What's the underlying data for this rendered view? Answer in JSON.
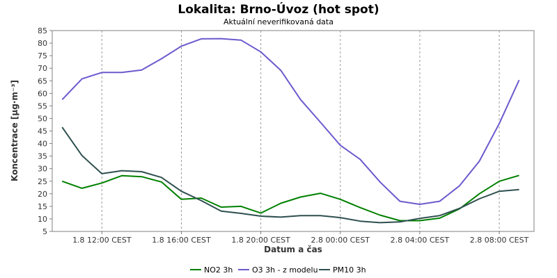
{
  "chart_data": {
    "type": "line",
    "title": "Lokalita: Brno-Úvoz (hot spot)",
    "subtitle": "Aktuální neverifikovaná data",
    "xlabel": "Datum a čas",
    "ylabel": "Koncentrace [µg·m⁻³]",
    "ylim": [
      5,
      85
    ],
    "yticks": [
      5,
      10,
      15,
      20,
      25,
      30,
      35,
      40,
      45,
      50,
      55,
      60,
      65,
      70,
      75,
      80,
      85
    ],
    "xlim": [
      9.5,
      33.75
    ],
    "xticks": [
      {
        "x": 12,
        "label": "1.8 12:00 CEST"
      },
      {
        "x": 16,
        "label": "1.8 16:00 CEST"
      },
      {
        "x": 20,
        "label": "1.8 20:00 CEST"
      },
      {
        "x": 24,
        "label": "2.8 00:00 CEST"
      },
      {
        "x": 28,
        "label": "2.8 04:00 CEST"
      },
      {
        "x": 32,
        "label": "2.8 08:00 CEST"
      }
    ],
    "grid": true,
    "legend_position": "bottom",
    "x": [
      10,
      11,
      12,
      13,
      14,
      15,
      16,
      17,
      18,
      19,
      20,
      21,
      22,
      23,
      24,
      25,
      26,
      27,
      28,
      29,
      30,
      31,
      32,
      33
    ],
    "series": [
      {
        "name": "NO2 3h",
        "color": "#008000",
        "values": [
          25,
          22.2,
          24.3,
          27.2,
          26.8,
          24.7,
          17.8,
          18.3,
          14.7,
          15,
          12.3,
          16.2,
          18.7,
          20.2,
          17.8,
          14.5,
          11.5,
          9.3,
          9.3,
          10.3,
          14,
          20,
          25,
          27.3
        ]
      },
      {
        "name": "O3 3h - z modelu",
        "color": "#6a5acd",
        "values": [
          57.5,
          65.8,
          68.3,
          68.3,
          69.3,
          73.8,
          78.8,
          81.7,
          81.8,
          81.2,
          76.5,
          69.2,
          57.5,
          48.5,
          39.3,
          33.7,
          24.7,
          17,
          15.8,
          17,
          23.2,
          33,
          48,
          65.3
        ]
      },
      {
        "name": "PM10 3h",
        "color": "#2f4f4f",
        "values": [
          46.5,
          35.2,
          28,
          29.2,
          28.8,
          26.5,
          21,
          17.3,
          13.1,
          12.2,
          11.1,
          10.7,
          11.3,
          11.3,
          10.5,
          9.1,
          8.5,
          8.8,
          10.2,
          11.3,
          14.2,
          18,
          21,
          21.7
        ]
      }
    ]
  }
}
